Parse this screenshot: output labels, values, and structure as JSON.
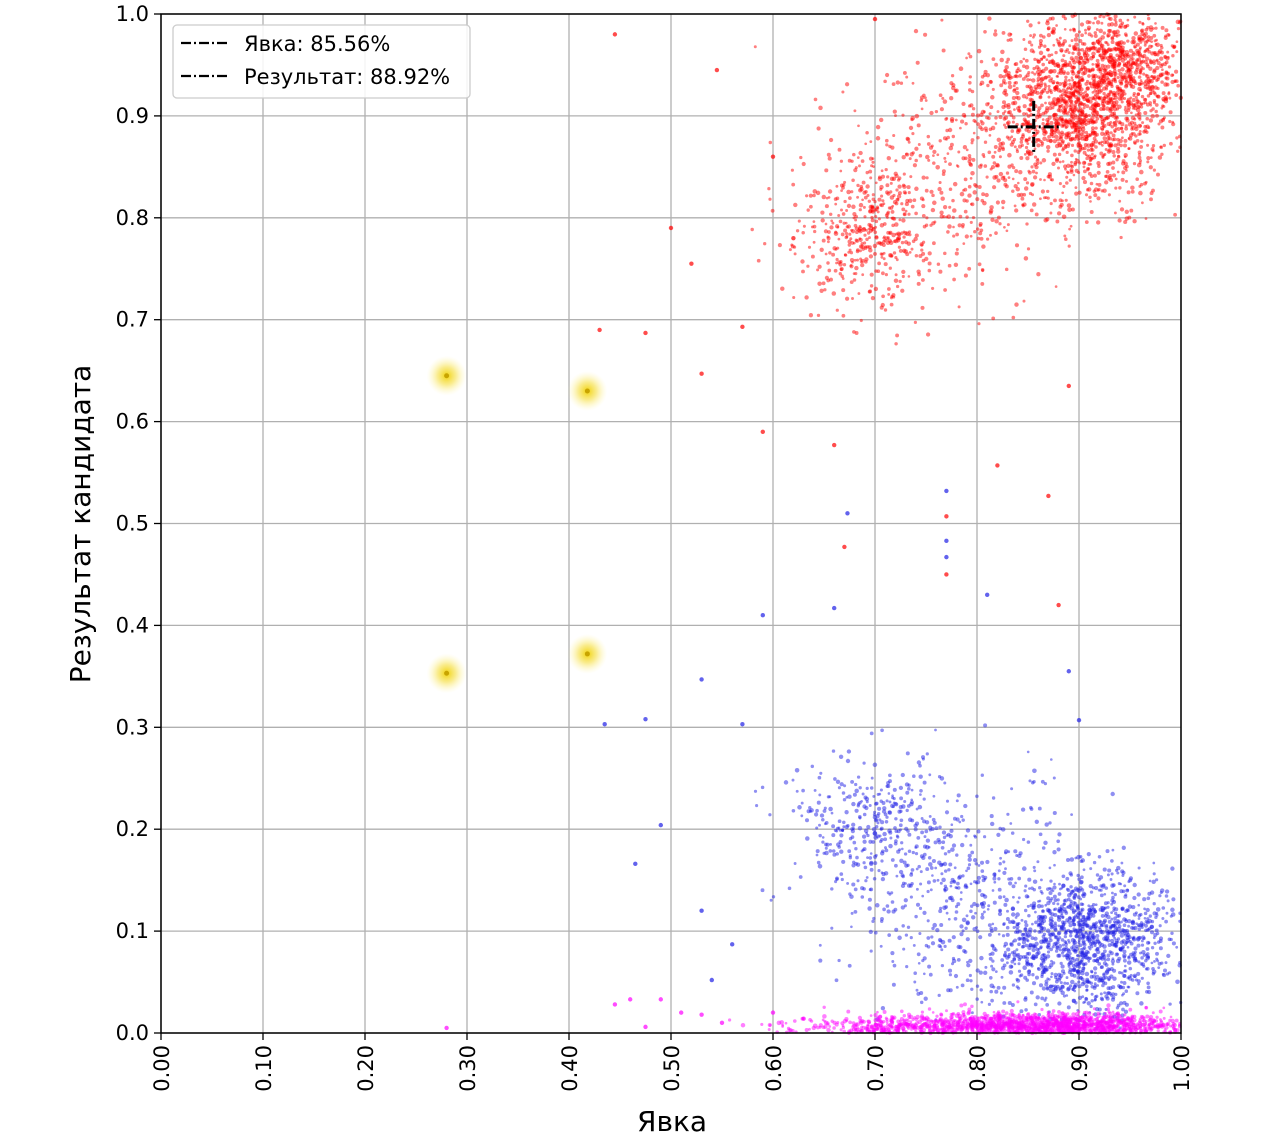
{
  "chart_data": {
    "type": "scatter",
    "xlabel": "Явка",
    "ylabel": "Результат кандидата",
    "xlim": [
      0.0,
      1.0
    ],
    "ylim": [
      0.0,
      1.0
    ],
    "xticks": [
      "0.00",
      "0.10",
      "0.20",
      "0.30",
      "0.40",
      "0.50",
      "0.60",
      "0.70",
      "0.80",
      "0.90",
      "1.00"
    ],
    "yticks": [
      "0.0",
      "0.1",
      "0.2",
      "0.3",
      "0.4",
      "0.5",
      "0.6",
      "0.7",
      "0.8",
      "0.9",
      "1.0"
    ],
    "grid": true,
    "legend": {
      "location": "top-left",
      "entries": [
        {
          "label": "Явка: 85.56%",
          "style": "dash-dot",
          "color": "#000000"
        },
        {
          "label": "Результат: 88.92%",
          "style": "dash-dot",
          "color": "#000000"
        }
      ]
    },
    "crosshair": {
      "x": 0.8556,
      "y": 0.8892,
      "color": "#000000"
    },
    "highlights": [
      {
        "x": 0.28,
        "y": 0.645,
        "color": "#f5d90a"
      },
      {
        "x": 0.418,
        "y": 0.63,
        "color": "#f5d90a"
      },
      {
        "x": 0.28,
        "y": 0.353,
        "color": "#f5d90a"
      },
      {
        "x": 0.418,
        "y": 0.372,
        "color": "#f5d90a"
      }
    ],
    "series": [
      {
        "color": "#ff0000",
        "clusters": [
          {
            "cx": 0.9,
            "cy": 0.91,
            "sx": 0.045,
            "sy": 0.045,
            "n": 1500
          },
          {
            "cx": 0.95,
            "cy": 0.95,
            "sx": 0.03,
            "sy": 0.03,
            "n": 500
          },
          {
            "cx": 0.69,
            "cy": 0.785,
            "sx": 0.035,
            "sy": 0.035,
            "n": 420
          },
          {
            "cx": 0.78,
            "cy": 0.84,
            "sx": 0.06,
            "sy": 0.055,
            "n": 380
          }
        ],
        "outliers": [
          [
            0.445,
            0.98
          ],
          [
            0.545,
            0.945
          ],
          [
            0.43,
            0.69
          ],
          [
            0.475,
            0.687
          ],
          [
            0.53,
            0.647
          ],
          [
            0.59,
            0.59
          ],
          [
            0.66,
            0.577
          ],
          [
            0.67,
            0.477
          ],
          [
            0.77,
            0.45
          ],
          [
            0.77,
            0.507
          ],
          [
            0.82,
            0.557
          ],
          [
            0.5,
            0.79
          ],
          [
            0.52,
            0.755
          ],
          [
            0.57,
            0.693
          ],
          [
            0.62,
            0.78
          ],
          [
            0.6,
            0.86
          ],
          [
            0.7,
            0.995
          ],
          [
            0.89,
            0.635
          ],
          [
            0.88,
            0.42
          ],
          [
            0.87,
            0.527
          ]
        ]
      },
      {
        "color": "#1f1fe6",
        "clusters": [
          {
            "cx": 0.905,
            "cy": 0.09,
            "sx": 0.045,
            "sy": 0.035,
            "n": 1300
          },
          {
            "cx": 0.69,
            "cy": 0.205,
            "sx": 0.035,
            "sy": 0.03,
            "n": 260
          },
          {
            "cx": 0.78,
            "cy": 0.15,
            "sx": 0.065,
            "sy": 0.055,
            "n": 480
          }
        ],
        "outliers": [
          [
            0.59,
            0.41
          ],
          [
            0.66,
            0.417
          ],
          [
            0.673,
            0.51
          ],
          [
            0.77,
            0.532
          ],
          [
            0.77,
            0.483
          ],
          [
            0.77,
            0.467
          ],
          [
            0.81,
            0.43
          ],
          [
            0.435,
            0.303
          ],
          [
            0.475,
            0.308
          ],
          [
            0.53,
            0.347
          ],
          [
            0.57,
            0.303
          ],
          [
            0.49,
            0.204
          ],
          [
            0.465,
            0.166
          ],
          [
            0.56,
            0.087
          ],
          [
            0.53,
            0.12
          ],
          [
            0.54,
            0.052
          ],
          [
            0.89,
            0.355
          ],
          [
            0.9,
            0.307
          ]
        ]
      },
      {
        "color": "#ff00ff",
        "clusters": [
          {
            "cx": 0.87,
            "cy": 0.008,
            "sx": 0.07,
            "sy": 0.006,
            "n": 1500
          },
          {
            "cx": 0.72,
            "cy": 0.006,
            "sx": 0.06,
            "sy": 0.005,
            "n": 350
          }
        ],
        "outliers": [
          [
            0.28,
            0.005
          ],
          [
            0.445,
            0.028
          ],
          [
            0.46,
            0.033
          ],
          [
            0.475,
            0.006
          ],
          [
            0.49,
            0.033
          ],
          [
            0.51,
            0.02
          ],
          [
            0.53,
            0.018
          ],
          [
            0.55,
            0.01
          ],
          [
            0.6,
            0.02
          ],
          [
            0.63,
            0.014
          ]
        ]
      }
    ]
  }
}
